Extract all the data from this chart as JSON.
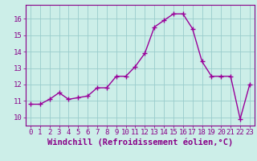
{
  "x": [
    0,
    1,
    2,
    3,
    4,
    5,
    6,
    7,
    8,
    9,
    10,
    11,
    12,
    13,
    14,
    15,
    16,
    17,
    18,
    19,
    20,
    21,
    22,
    23
  ],
  "y": [
    10.8,
    10.8,
    11.1,
    11.5,
    11.1,
    11.2,
    11.3,
    11.8,
    11.8,
    12.5,
    12.5,
    13.1,
    13.9,
    15.5,
    15.9,
    16.3,
    16.3,
    15.4,
    13.4,
    12.5,
    12.5,
    12.5,
    9.9,
    12.0
  ],
  "line_color": "#990099",
  "marker": "+",
  "marker_size": 4,
  "marker_linewidth": 1.0,
  "bg_color": "#cceee8",
  "grid_color": "#99cccc",
  "tick_color": "#880088",
  "label_color": "#880088",
  "xlabel": "Windchill (Refroidissement éolien,°C)",
  "ylim": [
    9.5,
    16.85
  ],
  "xlim": [
    -0.5,
    23.5
  ],
  "yticks": [
    10,
    11,
    12,
    13,
    14,
    15,
    16
  ],
  "xticks": [
    0,
    1,
    2,
    3,
    4,
    5,
    6,
    7,
    8,
    9,
    10,
    11,
    12,
    13,
    14,
    15,
    16,
    17,
    18,
    19,
    20,
    21,
    22,
    23
  ],
  "tick_fontsize": 6.5,
  "xlabel_fontsize": 7.5,
  "linewidth": 1.0
}
